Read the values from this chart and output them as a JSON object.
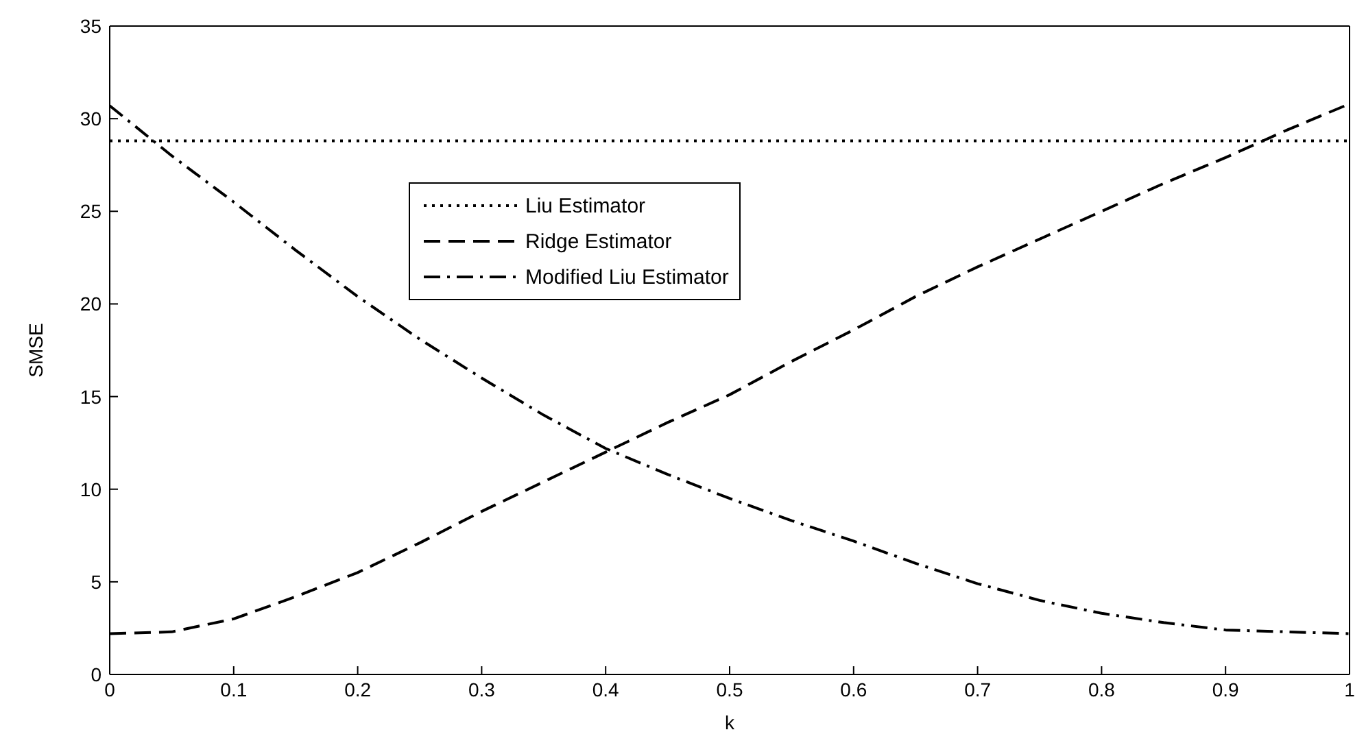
{
  "chart_data": {
    "type": "line",
    "xlabel": "k",
    "ylabel": "SMSE",
    "x": [
      0,
      0.05,
      0.1,
      0.15,
      0.2,
      0.25,
      0.3,
      0.35,
      0.4,
      0.45,
      0.5,
      0.55,
      0.6,
      0.65,
      0.7,
      0.75,
      0.8,
      0.85,
      0.9,
      0.95,
      1
    ],
    "series": [
      {
        "name": "Liu Estimator",
        "color": "#000000",
        "line_style": "dotted",
        "values": [
          28.8,
          28.8,
          28.8,
          28.8,
          28.8,
          28.8,
          28.8,
          28.8,
          28.8,
          28.8,
          28.8,
          28.8,
          28.8,
          28.8,
          28.8,
          28.8,
          28.8,
          28.8,
          28.8,
          28.8,
          28.8
        ]
      },
      {
        "name": "Ridge Estimator",
        "color": "#000000",
        "line_style": "dashed",
        "values": [
          2.2,
          2.3,
          3.0,
          4.2,
          5.5,
          7.1,
          8.8,
          10.4,
          12.0,
          13.6,
          15.1,
          16.9,
          18.6,
          20.4,
          22.0,
          23.5,
          25.0,
          26.5,
          27.9,
          29.4,
          30.8
        ]
      },
      {
        "name": "Modified Liu Estimator",
        "color": "#000000",
        "line_style": "dashdot",
        "values": [
          30.7,
          28.0,
          25.5,
          22.9,
          20.4,
          18.1,
          16.0,
          14.0,
          12.2,
          10.8,
          9.5,
          8.3,
          7.2,
          6.0,
          4.9,
          4.0,
          3.3,
          2.8,
          2.4,
          2.3,
          2.2
        ]
      }
    ],
    "xlim": [
      0,
      1
    ],
    "xticks": [
      0,
      0.1,
      0.2,
      0.3,
      0.4,
      0.5,
      0.6,
      0.7,
      0.8,
      0.9,
      1
    ],
    "ylim": [
      0,
      35
    ],
    "yticks": [
      0,
      5,
      10,
      15,
      20,
      25,
      30,
      35
    ],
    "legend": "top",
    "marker": "none"
  }
}
